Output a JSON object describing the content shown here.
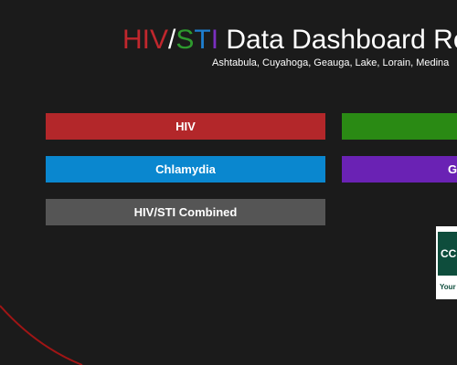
{
  "header": {
    "title": {
      "hiv": "HIV",
      "slash": "/",
      "s": "S",
      "t": "T",
      "i": "I",
      "rest": " Data Dashboard Re"
    },
    "subtitle": "Ashtabula, Cuyahoga, Geauga, Lake, Lorain, Medina"
  },
  "buttons": {
    "hiv": "HIV",
    "chlamydia": "Chlamydia",
    "g": "G",
    "combined": "HIV/STI Combined"
  },
  "logo": {
    "mark": "CC",
    "tagline": "Your"
  }
}
